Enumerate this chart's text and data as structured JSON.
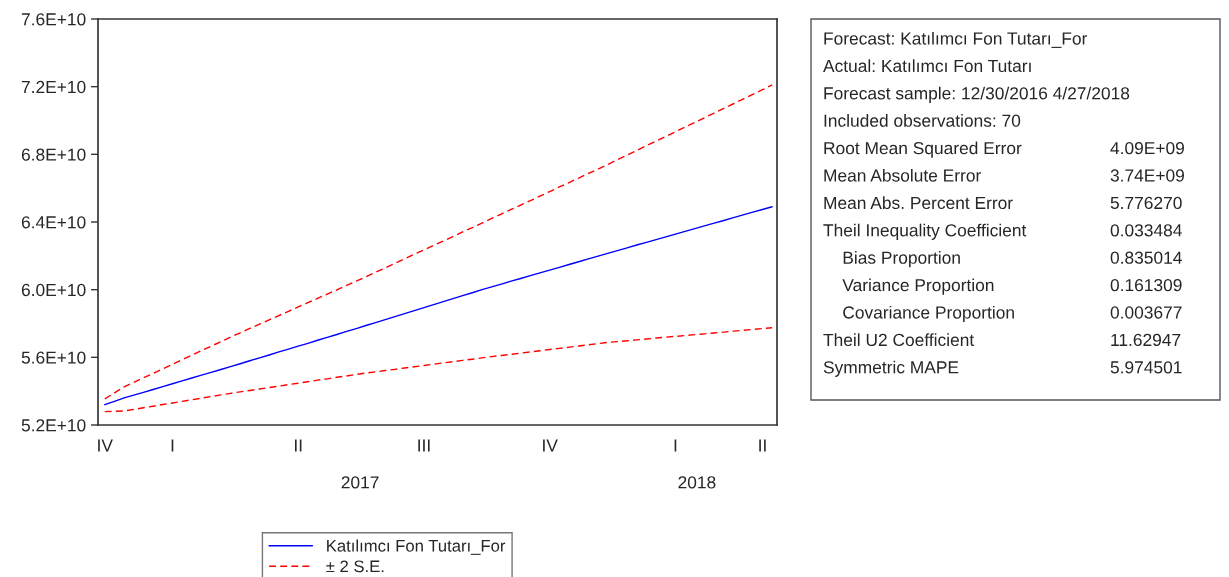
{
  "chart_data": {
    "type": "line",
    "categories": [
      "IV",
      null,
      null,
      null,
      null,
      null,
      null,
      "I",
      null,
      null,
      null,
      null,
      null,
      null,
      null,
      null,
      null,
      null,
      null,
      null,
      "II",
      null,
      null,
      null,
      null,
      null,
      null,
      null,
      null,
      null,
      null,
      null,
      null,
      "III",
      null,
      null,
      null,
      null,
      null,
      null,
      null,
      null,
      null,
      null,
      null,
      null,
      "IV",
      null,
      null,
      null,
      null,
      null,
      null,
      null,
      null,
      null,
      null,
      null,
      null,
      "I",
      null,
      null,
      null,
      null,
      null,
      null,
      null,
      null,
      "II",
      null
    ],
    "series": [
      {
        "name": "Katılımcı Fon Tutarı_For",
        "color": "#0000ff",
        "line_style": "solid",
        "values": [
          53200000000.0,
          53400000000.0,
          53600000000.0,
          53770000000.0,
          53930000000.0,
          54100000000.0,
          54270000000.0,
          54440000000.0,
          54610000000.0,
          54780000000.0,
          54950000000.0,
          55110000000.0,
          55280000000.0,
          55450000000.0,
          55620000000.0,
          55800000000.0,
          55970000000.0,
          56140000000.0,
          56320000000.0,
          56490000000.0,
          56660000000.0,
          56830000000.0,
          57010000000.0,
          57180000000.0,
          57350000000.0,
          57530000000.0,
          57700000000.0,
          57880000000.0,
          58050000000.0,
          58230000000.0,
          58410000000.0,
          58580000000.0,
          58760000000.0,
          58940000000.0,
          59120000000.0,
          59290000000.0,
          59470000000.0,
          59650000000.0,
          59820000000.0,
          60000000000.0,
          60170000000.0,
          60330000000.0,
          60500000000.0,
          60660000000.0,
          60830000000.0,
          60990000000.0,
          61160000000.0,
          61320000000.0,
          61490000000.0,
          61650000000.0,
          61820000000.0,
          61980000000.0,
          62150000000.0,
          62310000000.0,
          62470000000.0,
          62640000000.0,
          62800000000.0,
          62960000000.0,
          63120000000.0,
          63280000000.0,
          63450000000.0,
          63610000000.0,
          63770000000.0,
          63930000000.0,
          64090000000.0,
          64260000000.0,
          64420000000.0,
          64580000000.0,
          64740000000.0,
          64900000000.0
        ]
      },
      {
        "name": "± 2 S.E.",
        "color": "#ff0000",
        "line_style": "dashed",
        "values": [
          53540000000.0,
          53900000000.0,
          54250000000.0,
          54520000000.0,
          54790000000.0,
          55050000000.0,
          55320000000.0,
          55590000000.0,
          55860000000.0,
          56130000000.0,
          56400000000.0,
          56660000000.0,
          56930000000.0,
          57200000000.0,
          57450000000.0,
          57710000000.0,
          57960000000.0,
          58220000000.0,
          58470000000.0,
          58720000000.0,
          58980000000.0,
          59230000000.0,
          59480000000.0,
          59740000000.0,
          59990000000.0,
          60250000000.0,
          60500000000.0,
          60760000000.0,
          61030000000.0,
          61290000000.0,
          61560000000.0,
          61820000000.0,
          62090000000.0,
          62350000000.0,
          62620000000.0,
          62880000000.0,
          63140000000.0,
          63410000000.0,
          63670000000.0,
          63940000000.0,
          64210000000.0,
          64470000000.0,
          64740000000.0,
          65000000000.0,
          65260000000.0,
          65530000000.0,
          65800000000.0,
          66070000000.0,
          66330000000.0,
          66600000000.0,
          66870000000.0,
          67130000000.0,
          67400000000.0,
          67680000000.0,
          67950000000.0,
          68230000000.0,
          68510000000.0,
          68780000000.0,
          69060000000.0,
          69330000000.0,
          69610000000.0,
          69890000000.0,
          70160000000.0,
          70440000000.0,
          70720000000.0,
          70990000000.0,
          71270000000.0,
          71550000000.0,
          71820000000.0,
          72100000000.0
        ]
      },
      {
        "color": "#ff0000",
        "line_style": "dashed",
        "values": [
          52790000000.0,
          52810000000.0,
          52830000000.0,
          52920000000.0,
          53020000000.0,
          53110000000.0,
          53210000000.0,
          53300000000.0,
          53400000000.0,
          53490000000.0,
          53590000000.0,
          53680000000.0,
          53780000000.0,
          53870000000.0,
          53960000000.0,
          54040000000.0,
          54130000000.0,
          54210000000.0,
          54300000000.0,
          54390000000.0,
          54470000000.0,
          54560000000.0,
          54650000000.0,
          54730000000.0,
          54820000000.0,
          54900000000.0,
          54990000000.0,
          55070000000.0,
          55140000000.0,
          55220000000.0,
          55290000000.0,
          55370000000.0,
          55440000000.0,
          55520000000.0,
          55590000000.0,
          55670000000.0,
          55740000000.0,
          55820000000.0,
          55890000000.0,
          55970000000.0,
          56040000000.0,
          56110000000.0,
          56180000000.0,
          56250000000.0,
          56320000000.0,
          56390000000.0,
          56460000000.0,
          56530000000.0,
          56600000000.0,
          56670000000.0,
          56740000000.0,
          56810000000.0,
          56880000000.0,
          56930000000.0,
          56980000000.0,
          57030000000.0,
          57080000000.0,
          57140000000.0,
          57190000000.0,
          57240000000.0,
          57290000000.0,
          57340000000.0,
          57390000000.0,
          57440000000.0,
          57490000000.0,
          57550000000.0,
          57600000000.0,
          57650000000.0,
          57700000000.0,
          57750000000.0
        ]
      }
    ],
    "ylim": [
      52000000000.0,
      76000000000.0
    ],
    "yticks": [
      {
        "value": 52000000000.0,
        "label": "5.2E+10"
      },
      {
        "value": 56000000000.0,
        "label": "5.6E+10"
      },
      {
        "value": 60000000000.0,
        "label": "6.0E+10"
      },
      {
        "value": 64000000000.0,
        "label": "6.4E+10"
      },
      {
        "value": 68000000000.0,
        "label": "6.8E+10"
      },
      {
        "value": 72000000000.0,
        "label": "7.2E+10"
      },
      {
        "value": 76000000000.0,
        "label": "7.6E+10"
      }
    ],
    "grid": false,
    "legend": "bottom",
    "annotations": [
      "2017",
      "2018",
      "Forecast: Katılımcı Fon Tutarı_For",
      "Actual: Katılımcı Fon Tutarı",
      "Forecast sample: 12/30/2016 4/27/2018",
      "Included observations: 70",
      "Root Mean Squared Error\t4.09E+09",
      "Mean Absolute Error\t3.74E+09",
      "Mean Abs. Percent Error\t5.776270",
      "Theil Inequality Coefficient\t0.033484",
      "    Bias Proportion\t0.835014",
      "    Variance Proportion\t0.161309",
      "    Covariance Proportion\t0.003677",
      "Theil U2 Coefficient\t11.62947",
      "Symmetric MAPE\t5.974501"
    ]
  }
}
